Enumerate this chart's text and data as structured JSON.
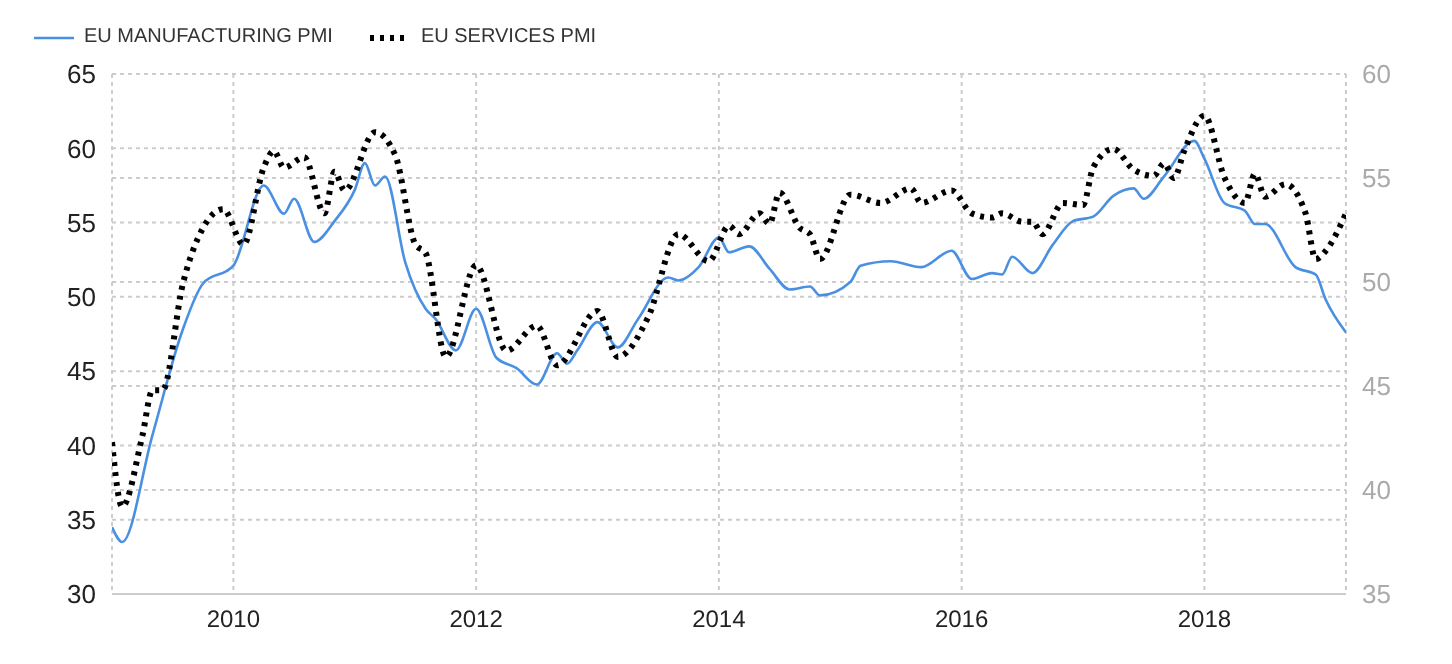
{
  "chart_data": {
    "type": "line",
    "xlim": [
      "2009-01",
      "2019-03"
    ],
    "xticks": [
      "2010",
      "2012",
      "2014",
      "2016",
      "2018"
    ],
    "ylim": [
      30,
      65
    ],
    "yticks": [
      30,
      35,
      40,
      45,
      50,
      55,
      60,
      65
    ],
    "y2lim": [
      35,
      60
    ],
    "y2ticks": [
      35,
      40,
      45,
      50,
      55,
      60
    ],
    "grid": true,
    "legend": "top left",
    "series": [
      {
        "name": "EU MANUFACTURING PMI",
        "color": "#4a90e2",
        "line_style": "solid",
        "axis": "y",
        "x": [
          "2009-01",
          "2009-02",
          "2009-05",
          "2009-08",
          "2009-10",
          "2010-01",
          "2010-04",
          "2010-06",
          "2010-07",
          "2010-09",
          "2010-11",
          "2011-01",
          "2011-02",
          "2011-03",
          "2011-04",
          "2011-06",
          "2011-08",
          "2011-09",
          "2011-11",
          "2012-01",
          "2012-03",
          "2012-05",
          "2012-07",
          "2012-09",
          "2012-10",
          "2012-11",
          "2013-01",
          "2013-03",
          "2013-05",
          "2013-08",
          "2013-09",
          "2013-11",
          "2014-01",
          "2014-02",
          "2014-04",
          "2014-06",
          "2014-08",
          "2014-10",
          "2014-11",
          "2015-02",
          "2015-03",
          "2015-06",
          "2015-09",
          "2015-12",
          "2016-02",
          "2016-04",
          "2016-05",
          "2016-06",
          "2016-08",
          "2016-10",
          "2016-12",
          "2017-02",
          "2017-04",
          "2017-06",
          "2017-07",
          "2017-09",
          "2017-12",
          "2018-01",
          "2018-03",
          "2018-05",
          "2018-06",
          "2018-07",
          "2018-10",
          "2018-12",
          "2019-01",
          "2019-03"
        ],
        "values": [
          34.5,
          33.5,
          40.7,
          47.8,
          50.9,
          52.1,
          57.5,
          55.6,
          56.6,
          53.7,
          55.1,
          57.2,
          59.0,
          57.5,
          58.1,
          52.3,
          49.2,
          48.5,
          46.4,
          49.2,
          45.9,
          45.2,
          44.1,
          46.2,
          45.5,
          46.4,
          48.3,
          46.6,
          48.5,
          51.3,
          51.1,
          52.0,
          54.0,
          53.0,
          53.4,
          51.9,
          50.5,
          50.7,
          50.1,
          51.0,
          52.1,
          52.4,
          52.0,
          53.1,
          51.2,
          51.6,
          51.5,
          52.7,
          51.6,
          53.5,
          55.1,
          55.4,
          56.8,
          57.3,
          56.6,
          58.1,
          60.5,
          59.3,
          56.3,
          55.8,
          54.9,
          54.9,
          52.0,
          51.5,
          49.8,
          47.6
        ]
      },
      {
        "name": "EU SERVICES PMI",
        "color": "#000000",
        "line_style": "dotted",
        "axis": "y2",
        "x": [
          "2009-01",
          "2009-02",
          "2009-04",
          "2009-05",
          "2009-06",
          "2009-08",
          "2009-10",
          "2009-12",
          "2010-02",
          "2010-04",
          "2010-05",
          "2010-06",
          "2010-08",
          "2010-10",
          "2010-11",
          "2010-12",
          "2011-03",
          "2011-05",
          "2011-07",
          "2011-08",
          "2011-10",
          "2012-01",
          "2012-04",
          "2012-07",
          "2012-09",
          "2013-01",
          "2013-03",
          "2013-06",
          "2013-09",
          "2013-12",
          "2014-02",
          "2014-03",
          "2014-05",
          "2014-06",
          "2014-07",
          "2014-09",
          "2014-10",
          "2014-11",
          "2015-02",
          "2015-05",
          "2015-08",
          "2015-09",
          "2015-12",
          "2016-02",
          "2016-04",
          "2016-05",
          "2016-07",
          "2016-08",
          "2016-09",
          "2016-11",
          "2017-01",
          "2017-02",
          "2017-04",
          "2017-06",
          "2017-08",
          "2017-09",
          "2017-10",
          "2017-11",
          "2018-01",
          "2018-03",
          "2018-05",
          "2018-06",
          "2018-07",
          "2018-09",
          "2018-11",
          "2018-12",
          "2019-01",
          "2019-03"
        ],
        "values": [
          42.3,
          39.2,
          42.6,
          44.8,
          44.8,
          49.9,
          52.6,
          53.5,
          51.8,
          55.5,
          56.3,
          55.5,
          56.0,
          53.3,
          55.3,
          54.4,
          57.2,
          56.1,
          51.8,
          51.4,
          46.4,
          50.8,
          46.7,
          47.9,
          46.0,
          48.6,
          46.4,
          48.3,
          52.3,
          51.0,
          52.7,
          52.3,
          53.3,
          52.8,
          54.3,
          52.6,
          52.3,
          51.1,
          54.2,
          53.8,
          54.5,
          53.8,
          54.4,
          53.3,
          53.1,
          53.3,
          52.9,
          52.9,
          52.3,
          53.8,
          53.7,
          55.5,
          56.4,
          55.4,
          55.1,
          55.7,
          55.0,
          56.3,
          58.0,
          55.0,
          53.8,
          55.2,
          54.1,
          54.7,
          53.3,
          51.1,
          51.5,
          53.3
        ]
      }
    ]
  }
}
